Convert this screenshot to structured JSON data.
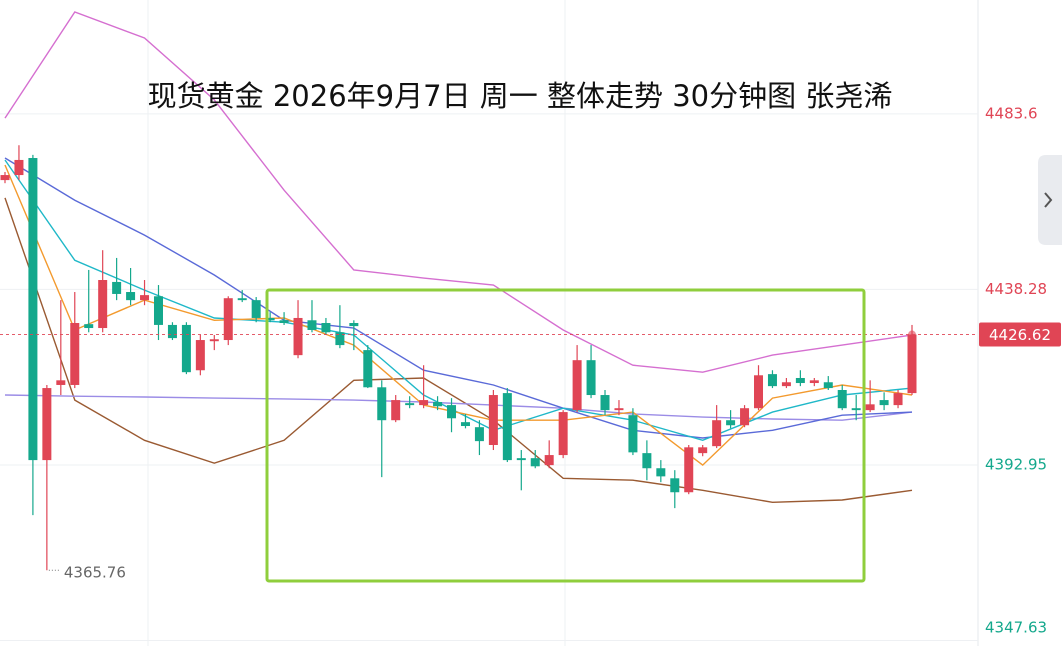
{
  "chart_data": {
    "type": "candlestick",
    "title": "现货黄金 2026年9月7日 周一 整体走势 30分钟图 张尧浠",
    "ylim": [
      4346.2,
      4513.0
    ],
    "yticks": [
      4347.63,
      4392.95,
      4438.28,
      4483.6
    ],
    "up_color": "#e04555",
    "down_color": "#14a88c",
    "open": [
      4466.5,
      4467.8,
      4472.2,
      4394.2,
      4413.6,
      4413.6,
      4429.3,
      4428.3,
      4440.2,
      4437.6,
      4435.5,
      4436.5,
      4429.1,
      4429.1,
      4417.4,
      4424.9,
      4425.2,
      4436.0,
      4435.5,
      4430.9,
      4430.3,
      4421.3,
      4430.3,
      4429.6,
      4427.2,
      4429.6,
      4422.6,
      4413.0,
      4404.5,
      4408.9,
      4408.4,
      4409.2,
      4408.4,
      4404.0,
      4402.7,
      4398.1,
      4411.5,
      4394.7,
      4394.7,
      4392.9,
      4395.5,
      4407.1,
      4420.0,
      4411.0,
      4407.1,
      4405.8,
      4396.0,
      4392.1,
      4389.5,
      4385.9,
      4396.0,
      4397.8,
      4404.5,
      4403.2,
      4407.6,
      4416.4,
      4413.3,
      4415.4,
      4414.1,
      4414.3,
      4412.3,
      4407.6,
      4407.1,
      4409.7,
      4408.4,
      4411.5
    ],
    "high": [
      4468.6,
      4475.5,
      4473.0,
      4413.6,
      4435.5,
      4437.6,
      4443.3,
      4448.4,
      4446.4,
      4443.8,
      4440.7,
      4439.4,
      4429.8,
      4429.8,
      4426.5,
      4426.5,
      4436.5,
      4438.1,
      4436.3,
      4432.4,
      4432.4,
      4435.5,
      4435.5,
      4430.9,
      4434.2,
      4430.3,
      4423.9,
      4414.8,
      4411.0,
      4410.7,
      4418.7,
      4410.7,
      4410.2,
      4406.1,
      4404.5,
      4412.3,
      4412.8,
      4396.8,
      4396.8,
      4399.3,
      4407.1,
      4423.9,
      4423.9,
      4412.3,
      4409.7,
      4407.6,
      4399.3,
      4394.2,
      4391.6,
      4398.1,
      4398.1,
      4408.4,
      4407.1,
      4408.4,
      4418.7,
      4417.4,
      4415.4,
      4417.4,
      4415.4,
      4415.9,
      4413.6,
      4411.0,
      4414.8,
      4411.7,
      4412.3,
      4429.1
    ],
    "low": [
      4465.7,
      4466.5,
      4380.0,
      4365.76,
      4411.0,
      4412.8,
      4427.2,
      4427.2,
      4435.5,
      4434.2,
      4434.2,
      4425.2,
      4425.2,
      4416.4,
      4416.1,
      4422.6,
      4423.9,
      4435.0,
      4429.8,
      4429.8,
      4429.1,
      4420.5,
      4427.2,
      4426.5,
      4423.1,
      4422.6,
      4412.8,
      4389.8,
      4404.0,
      4407.6,
      4407.6,
      4407.1,
      4401.4,
      4402.4,
      4395.5,
      4396.8,
      4393.7,
      4386.4,
      4392.1,
      4392.1,
      4394.7,
      4406.6,
      4410.2,
      4405.8,
      4405.8,
      4395.5,
      4389.0,
      4388.5,
      4381.8,
      4385.4,
      4395.2,
      4397.3,
      4402.4,
      4402.7,
      4407.1,
      4412.8,
      4412.8,
      4413.3,
      4413.3,
      4412.3,
      4407.1,
      4404.5,
      4406.6,
      4407.1,
      4407.6,
      4411.0
    ],
    "close": [
      4467.8,
      4471.7,
      4394.2,
      4412.8,
      4414.8,
      4429.6,
      4428.3,
      4440.7,
      4437.1,
      4435.5,
      4436.8,
      4429.1,
      4425.7,
      4416.9,
      4425.2,
      4425.4,
      4436.0,
      4435.5,
      4430.9,
      4430.3,
      4429.6,
      4430.9,
      4427.8,
      4427.2,
      4423.9,
      4428.8,
      4413.0,
      4404.5,
      4409.7,
      4408.4,
      4409.7,
      4408.1,
      4405.0,
      4403.0,
      4399.1,
      4411.0,
      4394.2,
      4394.2,
      4392.6,
      4395.5,
      4406.6,
      4420.0,
      4411.0,
      4407.1,
      4407.6,
      4396.2,
      4392.1,
      4390.0,
      4385.9,
      4397.5,
      4397.5,
      4404.5,
      4403.2,
      4407.6,
      4416.1,
      4413.3,
      4414.3,
      4414.1,
      4414.8,
      4412.8,
      4407.6,
      4407.1,
      4408.6,
      4408.4,
      4411.5,
      4426.62
    ],
    "line_x": [
      0,
      5,
      10,
      15,
      20,
      25,
      30,
      35,
      40,
      45,
      50,
      55,
      60,
      65
    ],
    "series": [
      {
        "color": "#d56fd0",
        "values": [
          4482.5,
          4509.9,
          4503.2,
          4487.2,
          4463.9,
          4443.3,
          4441.2,
          4439.4,
          4427.8,
          4418.7,
          4416.9,
          4421.3,
          4423.9,
          4426.5
        ]
      },
      {
        "color": "#9a5a32",
        "values": [
          4461.9,
          4409.7,
          4399.3,
          4393.4,
          4399.3,
          4414.8,
          4415.4,
          4404.5,
          4389.5,
          4389.0,
          4386.4,
          4383.3,
          4383.9,
          4386.4
        ]
      },
      {
        "color": "#9b8ce6",
        "values": [
          4411.0,
          4410.7,
          4410.5,
          4410.2,
          4410.0,
          4409.7,
          4409.2,
          4408.4,
          4407.6,
          4406.1,
          4405.3,
          4404.8,
          4404.5,
          4406.6
        ]
      },
      {
        "color": "#5a6ad8",
        "values": [
          4472.2,
          4461.3,
          4452.3,
          4442.0,
          4430.3,
          4428.3,
          4417.4,
          4413.6,
          4407.6,
          4401.9,
          4399.9,
          4401.9,
          4405.8,
          4406.6
        ]
      },
      {
        "color": "#1fb8c8",
        "values": [
          4471.7,
          4445.8,
          4438.1,
          4430.9,
          4429.8,
          4426.5,
          4411.0,
          4401.9,
          4407.6,
          4404.5,
          4399.3,
          4406.6,
          4411.0,
          4412.8
        ]
      },
      {
        "color": "#f39a2e",
        "values": [
          4470.4,
          4427.8,
          4435.5,
          4430.3,
          4430.9,
          4423.9,
          4408.4,
          4404.5,
          4404.5,
          4406.6,
          4392.9,
          4410.2,
          4413.6,
          4411.0
        ]
      }
    ]
  }
}
